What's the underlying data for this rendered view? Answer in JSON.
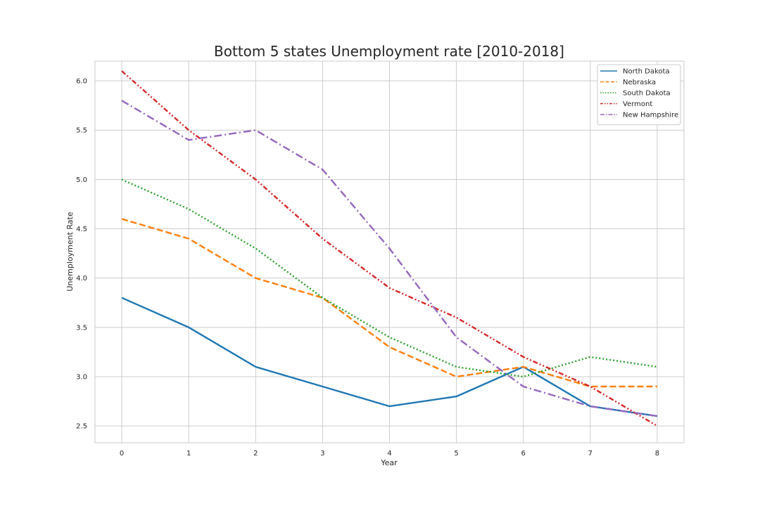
{
  "chart_data": {
    "type": "line",
    "title": "Bottom 5 states Unemployment rate [2010-2018]",
    "xlabel": "Year",
    "ylabel": "Unemployment Rate",
    "x": [
      0,
      1,
      2,
      3,
      4,
      5,
      6,
      7,
      8
    ],
    "xlim": [
      -0.4,
      8.4
    ],
    "ylim": [
      2.33,
      6.2
    ],
    "xticks": [
      0,
      1,
      2,
      3,
      4,
      5,
      6,
      7,
      8
    ],
    "yticks": [
      2.5,
      3.0,
      3.5,
      4.0,
      4.5,
      5.0,
      5.5,
      6.0
    ],
    "ytick_labels": [
      "2.5",
      "3.0",
      "3.5",
      "4.0",
      "4.5",
      "5.0",
      "5.5",
      "6.0"
    ],
    "grid": true,
    "legend_position": "top-right",
    "series": [
      {
        "name": "North Dakota",
        "color": "#1f77b4",
        "style": "solid",
        "values": [
          3.8,
          3.5,
          3.1,
          2.9,
          2.7,
          2.8,
          3.1,
          2.7,
          2.6
        ]
      },
      {
        "name": "Nebraska",
        "color": "#ff7f0e",
        "style": "dashed",
        "values": [
          4.6,
          4.4,
          4.0,
          3.8,
          3.3,
          3.0,
          3.1,
          2.9,
          2.9
        ]
      },
      {
        "name": "South Dakota",
        "color": "#2ca02c",
        "style": "dotted",
        "values": [
          5.0,
          4.7,
          4.3,
          3.8,
          3.4,
          3.1,
          3.0,
          3.2,
          3.1
        ]
      },
      {
        "name": "Vermont",
        "color": "#d62728",
        "style": "dashdotdot",
        "values": [
          6.1,
          5.5,
          5.0,
          4.4,
          3.9,
          3.6,
          3.2,
          2.9,
          2.5
        ]
      },
      {
        "name": "New Hampshire",
        "color": "#9467bd",
        "style": "dashdot",
        "values": [
          5.8,
          5.4,
          5.5,
          5.1,
          4.3,
          3.4,
          2.9,
          2.7,
          2.6
        ]
      }
    ]
  }
}
